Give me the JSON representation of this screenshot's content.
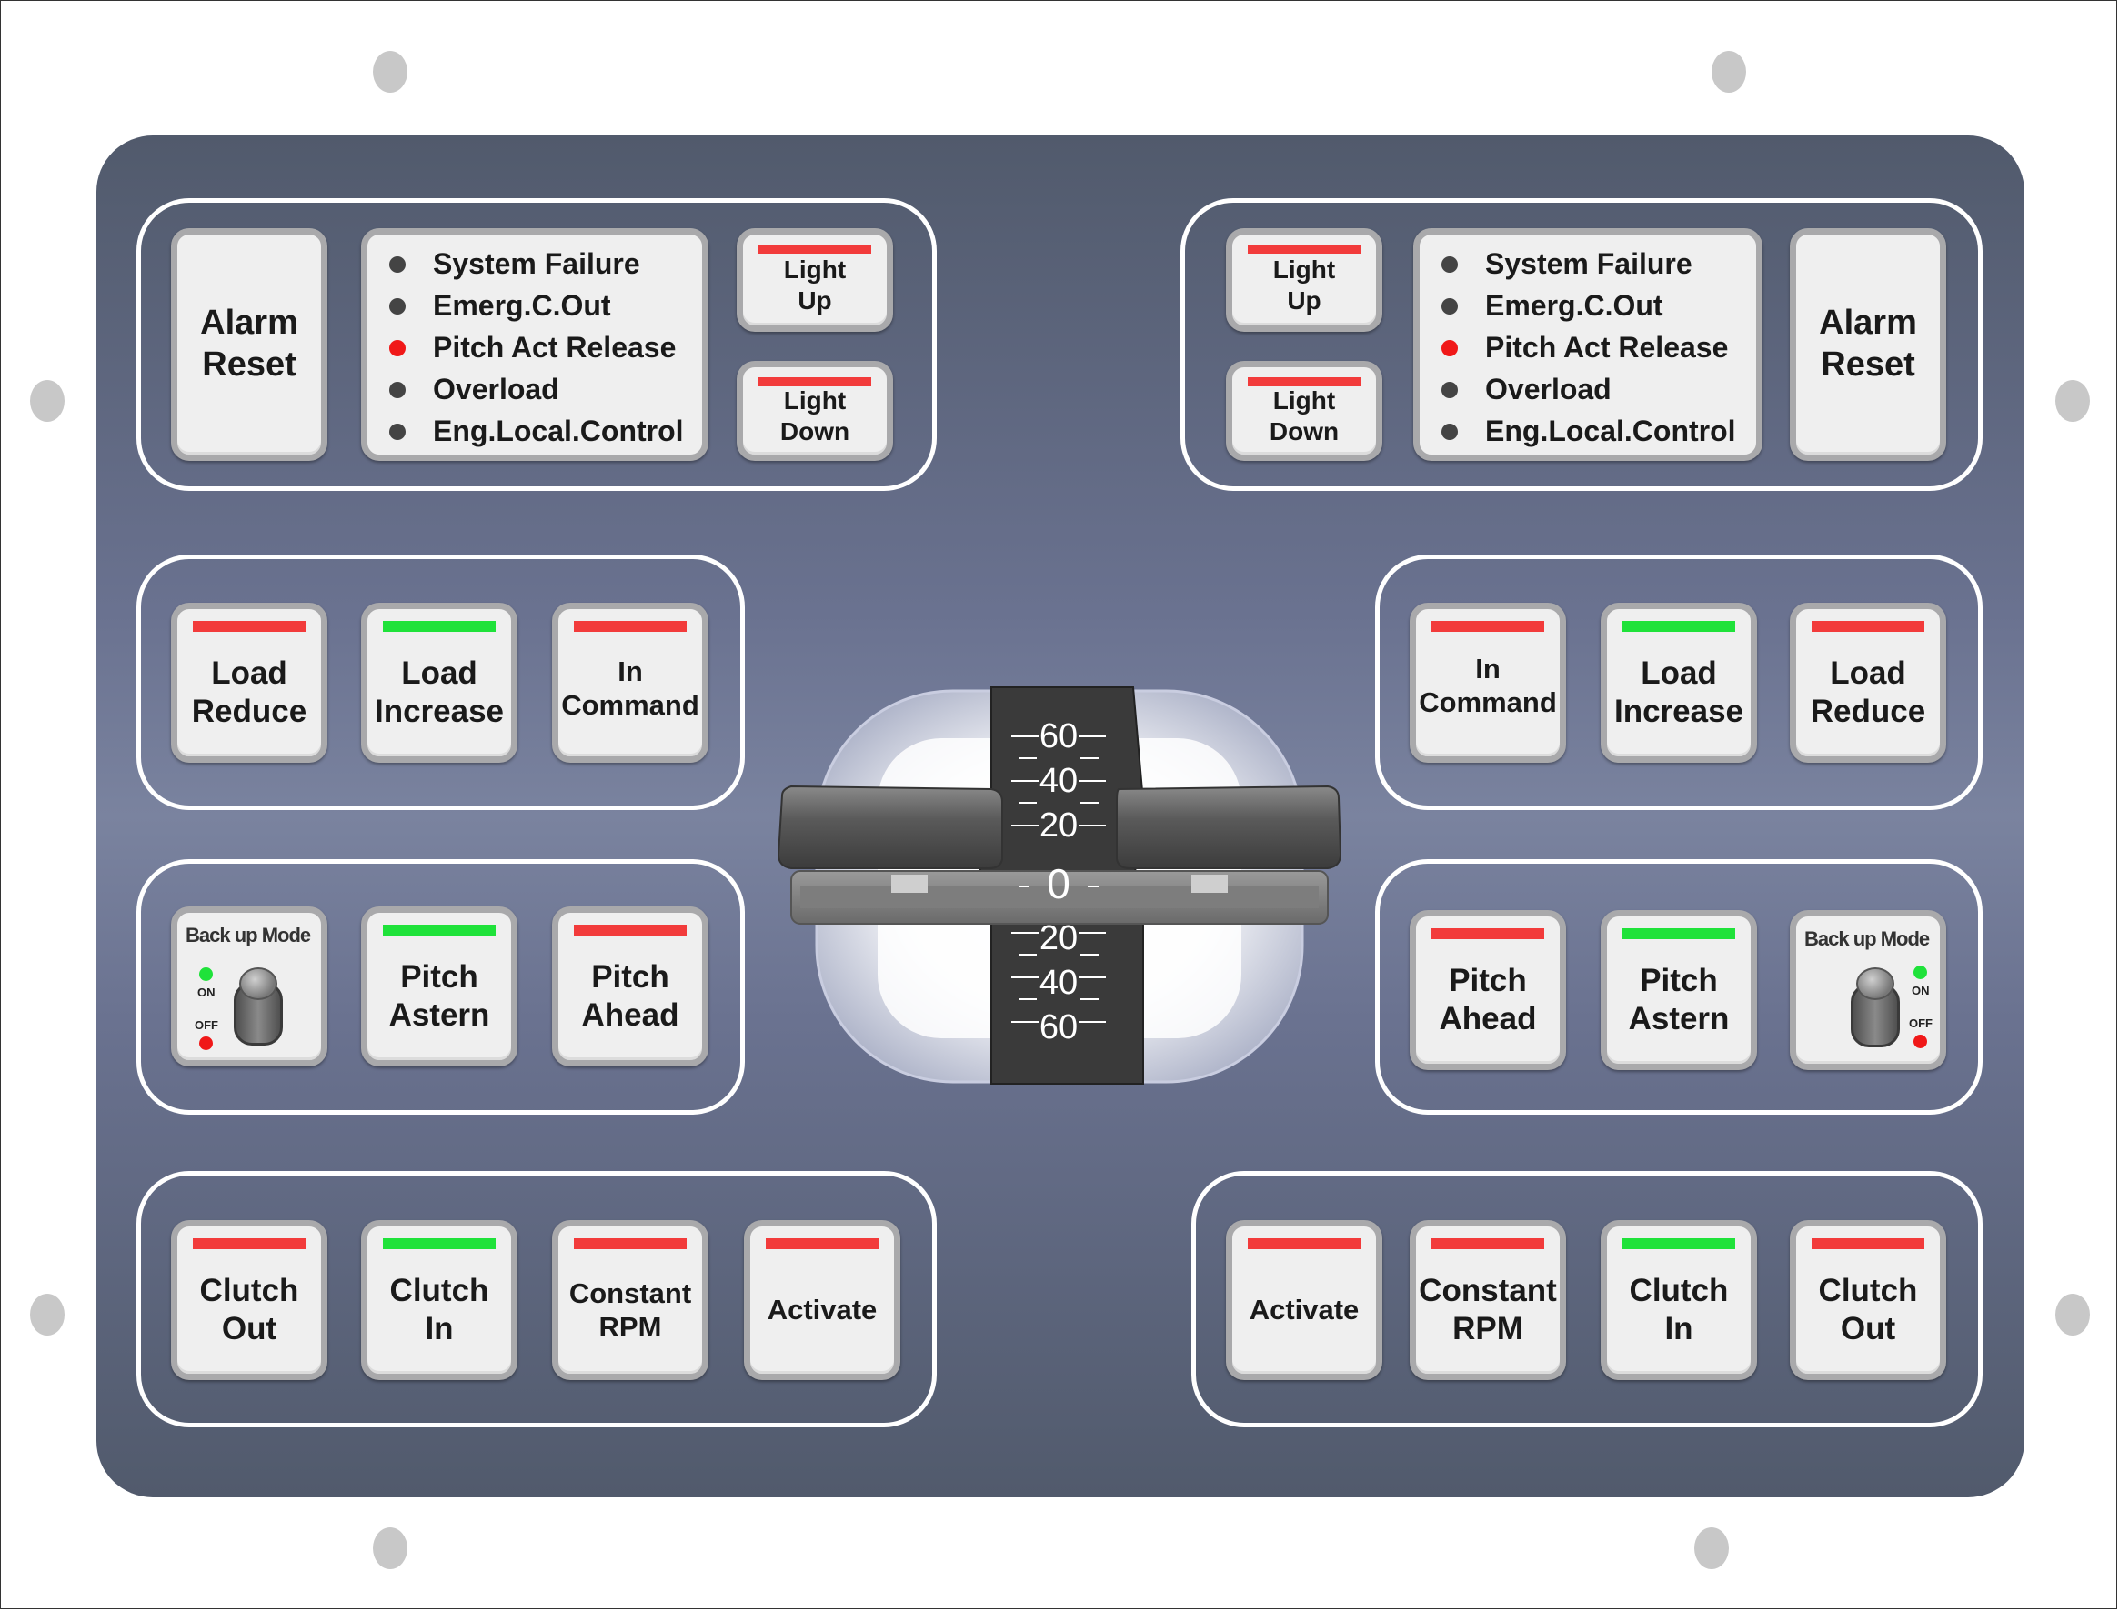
{
  "left": {
    "alarm_reset": "Alarm\nReset",
    "alarms": [
      {
        "label": "System Failure",
        "state": "off"
      },
      {
        "label": "Emerg.C.Out",
        "state": "off"
      },
      {
        "label": "Pitch Act Release",
        "state": "on"
      },
      {
        "label": "Overload",
        "state": "off"
      },
      {
        "label": "Eng.Local.Control",
        "state": "off"
      }
    ],
    "light_up": "Light\nUp",
    "light_down": "Light\nDown",
    "load_reduce": "Load\nReduce",
    "load_increase": "Load\nIncrease",
    "in_command": "In\nCommand",
    "backup_mode": {
      "title": "Back up Mode",
      "on": "ON",
      "off": "OFF"
    },
    "pitch_astern": "Pitch\nAstern",
    "pitch_ahead": "Pitch\nAhead",
    "clutch_out": "Clutch\nOut",
    "clutch_in": "Clutch\nIn",
    "constant_rpm": "Constant\nRPM",
    "activate": "Activate"
  },
  "right": {
    "alarm_reset": "Alarm\nReset",
    "alarms": [
      {
        "label": "System Failure",
        "state": "off"
      },
      {
        "label": "Emerg.C.Out",
        "state": "off"
      },
      {
        "label": "Pitch Act Release",
        "state": "on"
      },
      {
        "label": "Overload",
        "state": "off"
      },
      {
        "label": "Eng.Local.Control",
        "state": "off"
      }
    ],
    "light_up": "Light\nUp",
    "light_down": "Light\nDown",
    "in_command": "In\nCommand",
    "load_increase": "Load\nIncrease",
    "load_reduce": "Load\nReduce",
    "pitch_ahead": "Pitch\nAhead",
    "pitch_astern": "Pitch\nAstern",
    "backup_mode": {
      "title": "Back up Mode",
      "on": "ON",
      "off": "OFF"
    },
    "activate": "Activate",
    "constant_rpm": "Constant\nRPM",
    "clutch_in": "Clutch\nIn",
    "clutch_out": "Clutch\nOut"
  },
  "lever_scale": {
    "ahead": [
      "60",
      "40",
      "20"
    ],
    "zero": "0",
    "astern": [
      "20",
      "40",
      "60"
    ]
  },
  "colors": {
    "indicator_red": "#f23b3b",
    "indicator_green": "#1fe23a",
    "panel": "#6a7290"
  }
}
